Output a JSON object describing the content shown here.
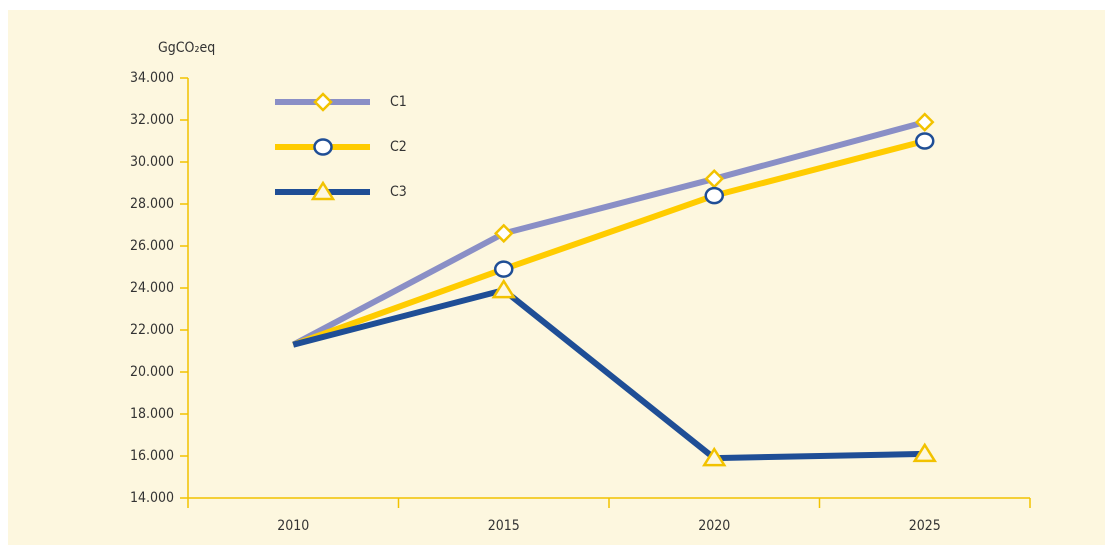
{
  "chart_data": {
    "type": "line",
    "y_label": "GgCO₂eq",
    "categories": [
      "2010",
      "2015",
      "2020",
      "2025"
    ],
    "series": [
      {
        "name": "C1",
        "color": "#8a8fc6",
        "marker": "diamond",
        "marker_stroke": "#f2c200",
        "values": [
          21300,
          26600,
          29200,
          31900
        ]
      },
      {
        "name": "C2",
        "color": "#ffcc00",
        "marker": "circle",
        "marker_stroke": "#1f4e96",
        "values": [
          21300,
          24900,
          28400,
          31000
        ]
      },
      {
        "name": "C3",
        "color": "#1f4e96",
        "marker": "triangle",
        "marker_stroke": "#f2c200",
        "values": [
          21300,
          23900,
          15900,
          16100
        ]
      }
    ],
    "ylim": [
      14000,
      34000
    ],
    "yticks": [
      {
        "value": 14000,
        "label": "14.000"
      },
      {
        "value": 16000,
        "label": "16.000"
      },
      {
        "value": 18000,
        "label": "18.000"
      },
      {
        "value": 20000,
        "label": "20.000"
      },
      {
        "value": 22000,
        "label": "22.000"
      },
      {
        "value": 24000,
        "label": "24.000"
      },
      {
        "value": 26000,
        "label": "26.000"
      },
      {
        "value": 28000,
        "label": "28.000"
      },
      {
        "value": 30000,
        "label": "30.000"
      },
      {
        "value": 32000,
        "label": "32.000"
      },
      {
        "value": 34000,
        "label": "34.000"
      }
    ],
    "legend": "upper left",
    "grid": false
  }
}
